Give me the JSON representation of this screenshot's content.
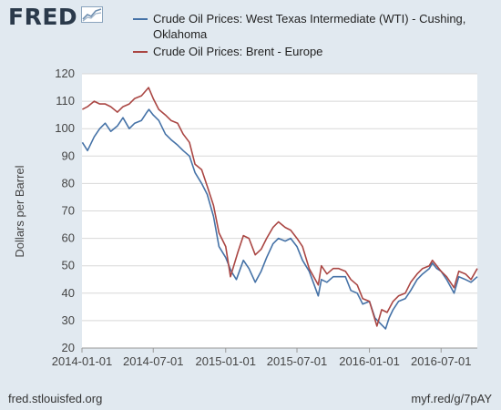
{
  "brand": {
    "logo_text": "FRED",
    "logo_icon": "chart-trend-icon"
  },
  "footer": {
    "source": "fred.stlouisfed.org",
    "short_link": "myf.red/g/7pAY"
  },
  "chart_data": {
    "type": "line",
    "title": "",
    "xlabel": "",
    "ylabel": "Dollars per Barrel",
    "ylim": [
      20,
      120
    ],
    "yticks": [
      20,
      30,
      40,
      50,
      60,
      70,
      80,
      90,
      100,
      110,
      120
    ],
    "xlim": [
      "2014-01-01",
      "2016-10-01"
    ],
    "xticks": [
      "2014-01-01",
      "2014-07-01",
      "2015-01-01",
      "2015-07-01",
      "2016-01-01",
      "2016-07-01"
    ],
    "grid": true,
    "legend": "top",
    "series": [
      {
        "name": "Crude Oil Prices: West Texas Intermediate (WTI) - Cushing, Oklahoma",
        "color": "#4572a7",
        "x": [
          "2014-01-02",
          "2014-01-15",
          "2014-02-01",
          "2014-02-15",
          "2014-03-01",
          "2014-03-15",
          "2014-04-01",
          "2014-04-15",
          "2014-05-01",
          "2014-05-15",
          "2014-06-01",
          "2014-06-15",
          "2014-06-20",
          "2014-07-01",
          "2014-07-15",
          "2014-08-01",
          "2014-08-15",
          "2014-09-01",
          "2014-09-15",
          "2014-10-01",
          "2014-10-15",
          "2014-11-01",
          "2014-11-15",
          "2014-12-01",
          "2014-12-15",
          "2015-01-01",
          "2015-01-15",
          "2015-01-28",
          "2015-02-15",
          "2015-03-01",
          "2015-03-17",
          "2015-04-01",
          "2015-04-15",
          "2015-05-01",
          "2015-05-15",
          "2015-06-01",
          "2015-06-15",
          "2015-07-01",
          "2015-07-15",
          "2015-08-01",
          "2015-08-24",
          "2015-09-01",
          "2015-09-15",
          "2015-10-01",
          "2015-10-15",
          "2015-11-01",
          "2015-11-15",
          "2015-12-01",
          "2015-12-15",
          "2016-01-01",
          "2016-01-15",
          "2016-02-11",
          "2016-02-20",
          "2016-03-01",
          "2016-03-15",
          "2016-04-01",
          "2016-04-15",
          "2016-05-01",
          "2016-05-15",
          "2016-06-01",
          "2016-06-09",
          "2016-06-20",
          "2016-07-01",
          "2016-07-15",
          "2016-08-03",
          "2016-08-15",
          "2016-09-01",
          "2016-09-15",
          "2016-10-01"
        ],
        "values": [
          95,
          92,
          97,
          100,
          102,
          99,
          101,
          104,
          100,
          102,
          103,
          106,
          107,
          105,
          103,
          98,
          96,
          94,
          92,
          90,
          84,
          80,
          76,
          68,
          57,
          53,
          48,
          45,
          52,
          49,
          44,
          48,
          53,
          58,
          60,
          59,
          60,
          57,
          52,
          48,
          39,
          45,
          44,
          46,
          46,
          46,
          41,
          40,
          36,
          37,
          31,
          27,
          31,
          34,
          37,
          38,
          41,
          45,
          47,
          49,
          51,
          49,
          48,
          45,
          40,
          46,
          45,
          44,
          46
        ]
      },
      {
        "name": "Crude Oil Prices: Brent - Europe",
        "color": "#aa4643",
        "x": [
          "2014-01-02",
          "2014-01-15",
          "2014-02-01",
          "2014-02-15",
          "2014-03-01",
          "2014-03-15",
          "2014-04-01",
          "2014-04-15",
          "2014-05-01",
          "2014-05-15",
          "2014-06-01",
          "2014-06-19",
          "2014-07-01",
          "2014-07-15",
          "2014-08-01",
          "2014-08-15",
          "2014-09-01",
          "2014-09-15",
          "2014-10-01",
          "2014-10-15",
          "2014-11-01",
          "2014-11-15",
          "2014-12-01",
          "2014-12-15",
          "2015-01-01",
          "2015-01-13",
          "2015-02-01",
          "2015-02-15",
          "2015-03-01",
          "2015-03-17",
          "2015-04-01",
          "2015-04-15",
          "2015-05-01",
          "2015-05-15",
          "2015-06-01",
          "2015-06-15",
          "2015-07-01",
          "2015-07-15",
          "2015-08-01",
          "2015-08-24",
          "2015-09-01",
          "2015-09-15",
          "2015-10-01",
          "2015-10-15",
          "2015-11-01",
          "2015-11-15",
          "2015-12-01",
          "2015-12-15",
          "2016-01-01",
          "2016-01-20",
          "2016-02-01",
          "2016-02-15",
          "2016-03-01",
          "2016-03-15",
          "2016-04-01",
          "2016-04-15",
          "2016-05-01",
          "2016-05-15",
          "2016-06-01",
          "2016-06-09",
          "2016-06-20",
          "2016-07-01",
          "2016-07-15",
          "2016-08-03",
          "2016-08-15",
          "2016-09-01",
          "2016-09-15",
          "2016-10-01"
        ],
        "values": [
          107,
          108,
          110,
          109,
          109,
          108,
          106,
          108,
          109,
          111,
          112,
          115,
          111,
          107,
          105,
          103,
          102,
          98,
          95,
          87,
          85,
          79,
          72,
          62,
          57,
          46,
          55,
          61,
          60,
          54,
          56,
          60,
          64,
          66,
          64,
          63,
          60,
          57,
          49,
          43,
          50,
          47,
          49,
          49,
          48,
          45,
          43,
          38,
          37,
          28,
          34,
          33,
          37,
          39,
          40,
          44,
          47,
          49,
          50,
          52,
          50,
          48,
          46,
          42,
          48,
          47,
          45,
          49
        ]
      }
    ]
  }
}
